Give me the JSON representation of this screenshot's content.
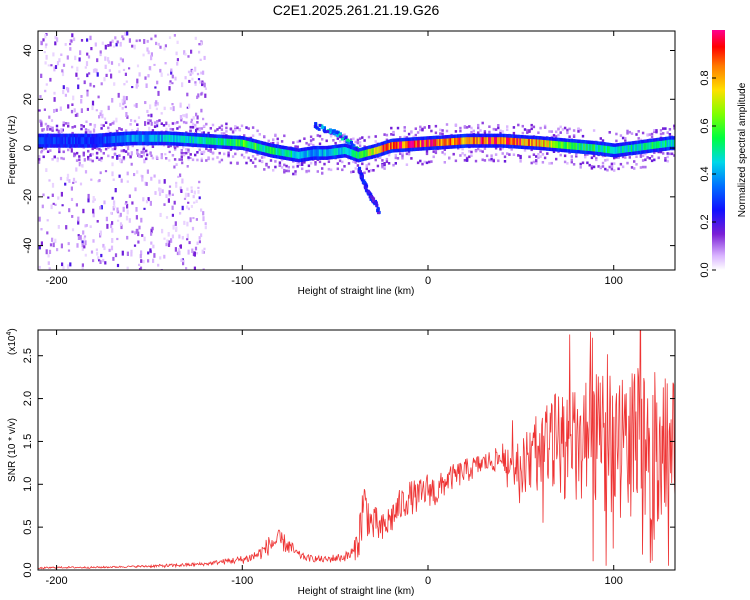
{
  "title": "C2E1.2025.261.21.19.G26",
  "chart_data": [
    {
      "type": "heatmap",
      "xlabel": "Height of straight line (km)",
      "ylabel": "Frequency (Hz)",
      "xlim": [
        -210,
        133
      ],
      "ylim": [
        -50,
        48
      ],
      "xticks": [
        -200,
        -100,
        0,
        100
      ],
      "xtick_labels": [
        "-200",
        "-100",
        "0",
        "100"
      ],
      "yticks": [
        -40,
        -20,
        0,
        20,
        40
      ],
      "ytick_labels": [
        "-40",
        "-20",
        "0",
        "20",
        "40"
      ],
      "colorbar": {
        "label": "Normalized spectral amplitude",
        "range": [
          0,
          1
        ],
        "ticks": [
          0.0,
          0.2,
          0.4,
          0.6,
          0.8
        ],
        "tick_labels": [
          "0.0",
          "0.2",
          "0.4",
          "0.6",
          "0.8"
        ],
        "colors": [
          "#ffffff",
          "#cc88ff",
          "#6600cc",
          "#0000ff",
          "#00c8ff",
          "#00ff66",
          "#99ff00",
          "#ffee00",
          "#ff8800",
          "#ff0000",
          "#ff0088"
        ]
      },
      "ridge": {
        "x": [
          -205,
          -180,
          -160,
          -140,
          -120,
          -100,
          -85,
          -70,
          -62,
          -55,
          -45,
          -38,
          -33,
          -28,
          -20,
          0,
          20,
          40,
          60,
          75,
          90,
          100,
          110,
          120,
          130
        ],
        "y": [
          3,
          3,
          4,
          4,
          3,
          2,
          -1,
          -3,
          -2,
          -2,
          -1,
          -3,
          -2,
          -1,
          1,
          2,
          3,
          3,
          2,
          1,
          0,
          -1,
          0,
          1,
          2
        ],
        "intensity": [
          0.3,
          0.3,
          0.4,
          0.45,
          0.5,
          0.6,
          0.55,
          0.5,
          0.4,
          0.45,
          0.5,
          0.55,
          0.7,
          0.85,
          0.95,
          0.95,
          0.9,
          0.95,
          0.85,
          0.6,
          0.55,
          0.5,
          0.5,
          0.55,
          0.5
        ]
      },
      "branch": {
        "x": [
          -62,
          -55,
          -48,
          -42,
          -38
        ],
        "y": [
          10,
          8,
          6,
          2,
          -1
        ]
      },
      "tail": {
        "x": [
          -38,
          -35,
          -32,
          -29,
          -27
        ],
        "y": [
          -8,
          -14,
          -19,
          -22,
          -26
        ]
      },
      "noise_region": {
        "x_from": -210,
        "x_to": -120,
        "y_from": -50,
        "y_to": 48
      }
    },
    {
      "type": "line",
      "xlabel": "Height of straight line (km)",
      "ylabel": "SNR (10 * v/v)",
      "scale_label": "(x10",
      "scale_exponent": "4",
      "xlim": [
        -210,
        133
      ],
      "ylim": [
        0,
        2.8
      ],
      "xticks": [
        -200,
        -100,
        0,
        100
      ],
      "xtick_labels": [
        "-200",
        "-100",
        "0",
        "100"
      ],
      "yticks": [
        0.0,
        0.5,
        1.0,
        1.5,
        2.0,
        2.5
      ],
      "ytick_labels": [
        "0.0",
        "0.5",
        "1.0",
        "1.5",
        "2.0",
        "2.5"
      ],
      "series": [
        {
          "name": "SNR",
          "color": "#ee3333",
          "x": [
            -210,
            -200,
            -180,
            -160,
            -140,
            -120,
            -110,
            -100,
            -95,
            -90,
            -85,
            -80,
            -75,
            -70,
            -65,
            -60,
            -55,
            -50,
            -45,
            -40,
            -37,
            -35,
            -33,
            -30,
            -28,
            -25,
            -20,
            -15,
            -10,
            -5,
            0,
            5,
            10,
            20,
            30,
            40,
            45,
            50,
            55,
            60,
            70,
            80,
            90,
            100,
            110,
            120,
            130
          ],
          "y": [
            0.02,
            0.03,
            0.03,
            0.04,
            0.05,
            0.07,
            0.1,
            0.12,
            0.15,
            0.2,
            0.3,
            0.35,
            0.28,
            0.18,
            0.14,
            0.13,
            0.12,
            0.14,
            0.15,
            0.2,
            0.4,
            0.75,
            0.7,
            0.5,
            0.55,
            0.45,
            0.6,
            0.75,
            0.85,
            0.85,
            0.95,
            0.9,
            1.05,
            1.15,
            1.25,
            1.3,
            1.3,
            1.2,
            1.3,
            1.4,
            1.5,
            1.4,
            1.5,
            1.45,
            1.5,
            1.45,
            1.4
          ],
          "amplitude": [
            0.01,
            0.01,
            0.01,
            0.01,
            0.02,
            0.02,
            0.03,
            0.05,
            0.06,
            0.08,
            0.12,
            0.12,
            0.1,
            0.05,
            0.04,
            0.04,
            0.04,
            0.05,
            0.05,
            0.1,
            0.25,
            0.4,
            0.3,
            0.2,
            0.2,
            0.2,
            0.2,
            0.2,
            0.2,
            0.2,
            0.2,
            0.2,
            0.15,
            0.15,
            0.12,
            0.15,
            0.2,
            0.3,
            0.4,
            0.5,
            0.6,
            0.7,
            0.8,
            0.85,
            0.9,
            0.9,
            0.85
          ]
        }
      ]
    }
  ]
}
